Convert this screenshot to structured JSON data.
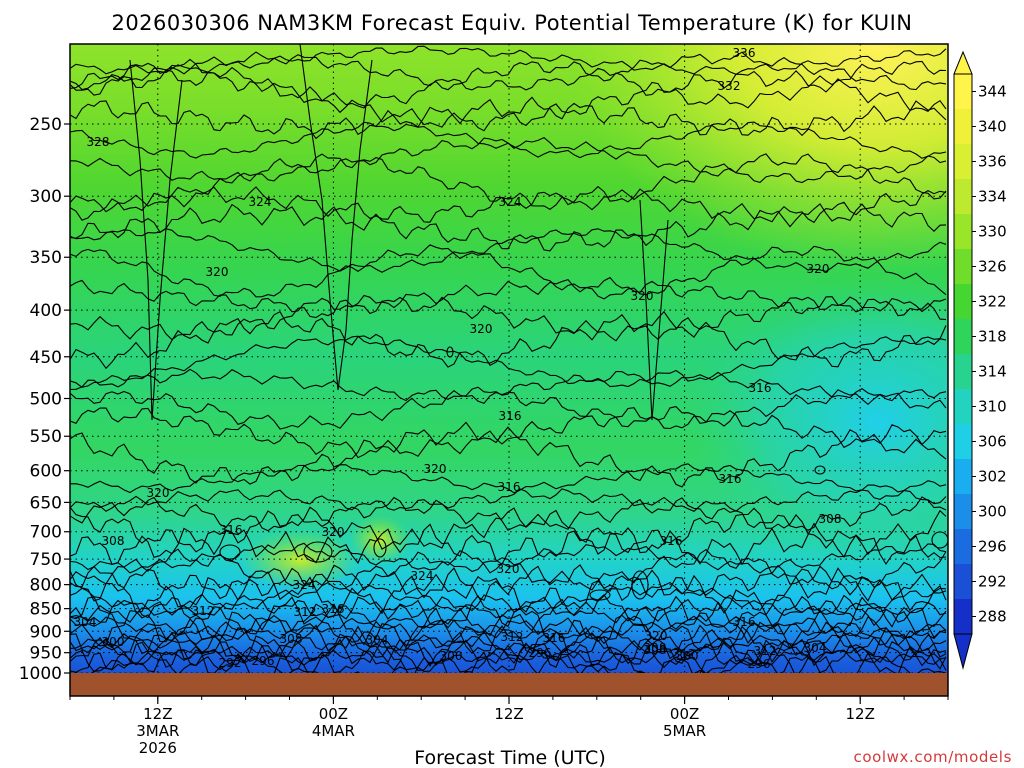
{
  "chart_data": {
    "type": "heatmap",
    "title": "2026030306 NAM3KM Forecast Equiv. Potential Temperature (K) for KUIN",
    "xlabel": "Forecast Time (UTC)",
    "ylabel": "",
    "credit": "coolwx.com/models",
    "y_axis": {
      "scale": "log",
      "inverted": true,
      "range_hPa": [
        1000,
        200
      ],
      "ticks": [
        "250",
        "300",
        "350",
        "400",
        "450",
        "500",
        "550",
        "600",
        "650",
        "700",
        "750",
        "800",
        "850",
        "900",
        "950",
        "1000"
      ]
    },
    "x_axis": {
      "range_hours": [
        0,
        60
      ],
      "ticks": [
        {
          "hour": 6,
          "line1": "12Z",
          "line2": "3MAR",
          "line3": "2026"
        },
        {
          "hour": 18,
          "line1": "00Z",
          "line2": "4MAR",
          "line3": ""
        },
        {
          "hour": 30,
          "line1": "12Z",
          "line2": "",
          "line3": ""
        },
        {
          "hour": 42,
          "line1": "00Z",
          "line2": "5MAR",
          "line3": ""
        },
        {
          "hour": 54,
          "line1": "12Z",
          "line2": "",
          "line3": ""
        }
      ]
    },
    "grid": "dotted",
    "colorbar": {
      "labels": [
        "344",
        "340",
        "336",
        "334",
        "330",
        "326",
        "322",
        "318",
        "314",
        "310",
        "306",
        "302",
        "300",
        "296",
        "292",
        "288"
      ],
      "colors": [
        "#fff44a",
        "#f0f038",
        "#d8ef32",
        "#bdea2e",
        "#98e52a",
        "#6fdd2a",
        "#45d631",
        "#2fd45a",
        "#27d38e",
        "#22d3bf",
        "#1ecfe6",
        "#1aaef0",
        "#1b8eea",
        "#1b6ce0",
        "#1a4fd6",
        "#1530c8"
      ]
    },
    "contour_labels": [
      "336",
      "332",
      "328",
      "324",
      "324",
      "320",
      "320",
      "320",
      "320",
      "320",
      "316",
      "316",
      "316",
      "316",
      "316",
      "316",
      "320",
      "320",
      "320",
      "324",
      "324",
      "312",
      "312",
      "308",
      "308",
      "308",
      "312",
      "316",
      "320",
      "316",
      "304",
      "300",
      "304",
      "308",
      "312",
      "300",
      "296",
      "300",
      "296",
      "296",
      "292",
      "308",
      "304",
      "316",
      "312"
    ],
    "ground": {
      "pressure_hPa": 1000,
      "color": "#a0522d"
    }
  }
}
